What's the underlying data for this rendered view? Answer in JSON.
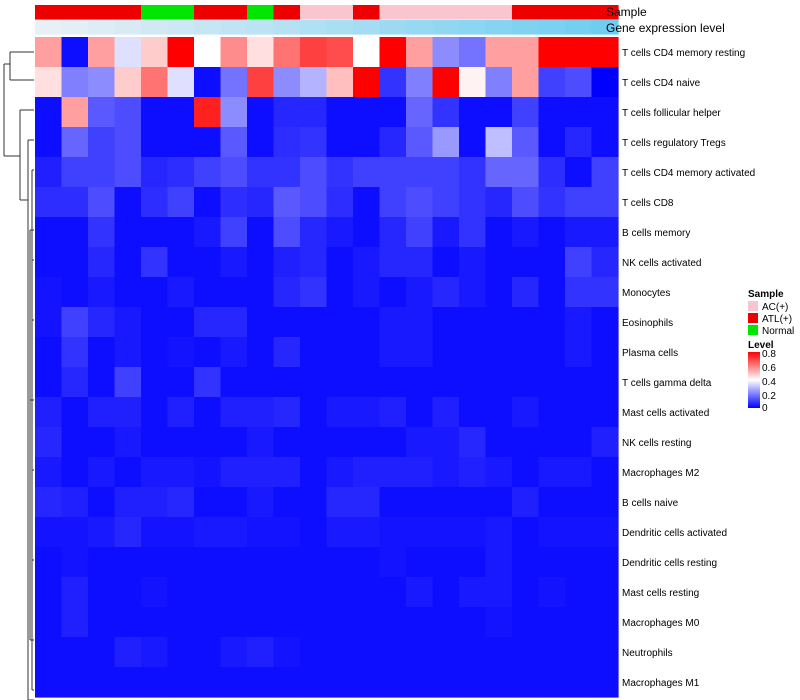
{
  "chart_data": {
    "type": "heatmap",
    "annotation_labels": [
      "Sample",
      "Gene expression level"
    ],
    "sample_group_colors": {
      "AC(+)": "#f9c6cf",
      "ATL(+)": "#ef0000",
      "Normal": "#00e600"
    },
    "sample_groups": [
      "ATL(+)",
      "ATL(+)",
      "ATL(+)",
      "ATL(+)",
      "Normal",
      "Normal",
      "ATL(+)",
      "ATL(+)",
      "Normal",
      "ATL(+)",
      "AC(+)",
      "AC(+)",
      "ATL(+)",
      "AC(+)",
      "AC(+)",
      "AC(+)",
      "AC(+)",
      "AC(+)",
      "ATL(+)",
      "ATL(+)",
      "ATL(+)",
      "ATL(+)"
    ],
    "expression_annotation": [
      0.02,
      0.05,
      0.09,
      0.13,
      0.17,
      0.21,
      0.25,
      0.29,
      0.33,
      0.37,
      0.41,
      0.45,
      0.5,
      0.54,
      0.58,
      0.62,
      0.66,
      0.7,
      0.74,
      0.78,
      0.82,
      0.86
    ],
    "rows": [
      "T cells CD4 memory resting",
      "T cells CD4 naive",
      "T cells follicular helper",
      "T cells regulatory  Tregs",
      "T cells CD4 memory activated",
      "T cells CD8",
      "B cells memory",
      "NK cells activated",
      "Monocytes",
      "Eosinophils",
      "Plasma cells",
      "T cells gamma delta",
      "Mast cells activated",
      "NK cells resting",
      "Macrophages M2",
      "B cells naive",
      "Dendritic cells activated",
      "Dendritic cells resting",
      "Mast cells resting",
      "Macrophages M0",
      "Neutrophils",
      "Macrophages M1"
    ],
    "values": [
      [
        0.55,
        0.02,
        0.55,
        0.35,
        0.48,
        0.8,
        0.4,
        0.58,
        0.45,
        0.62,
        0.7,
        0.68,
        0.4,
        0.8,
        0.55,
        0.22,
        0.18,
        0.55,
        0.55,
        0.8,
        0.8,
        0.8
      ],
      [
        0.45,
        0.2,
        0.22,
        0.48,
        0.62,
        0.35,
        0.02,
        0.18,
        0.7,
        0.22,
        0.28,
        0.5,
        0.8,
        0.08,
        0.2,
        0.8,
        0.42,
        0.2,
        0.55,
        0.1,
        0.12,
        0.0
      ],
      [
        0.02,
        0.55,
        0.14,
        0.12,
        0.02,
        0.02,
        0.75,
        0.22,
        0.02,
        0.06,
        0.06,
        0.02,
        0.02,
        0.02,
        0.16,
        0.08,
        0.02,
        0.02,
        0.1,
        0.02,
        0.02,
        0.02
      ],
      [
        0.02,
        0.16,
        0.1,
        0.12,
        0.02,
        0.02,
        0.02,
        0.14,
        0.02,
        0.07,
        0.08,
        0.02,
        0.02,
        0.06,
        0.14,
        0.24,
        0.02,
        0.3,
        0.14,
        0.02,
        0.06,
        0.02
      ],
      [
        0.05,
        0.1,
        0.1,
        0.12,
        0.06,
        0.07,
        0.1,
        0.12,
        0.08,
        0.08,
        0.12,
        0.08,
        0.1,
        0.1,
        0.1,
        0.1,
        0.08,
        0.16,
        0.16,
        0.07,
        0.02,
        0.1
      ],
      [
        0.07,
        0.07,
        0.12,
        0.02,
        0.07,
        0.1,
        0.02,
        0.07,
        0.06,
        0.14,
        0.12,
        0.07,
        0.02,
        0.1,
        0.12,
        0.1,
        0.08,
        0.06,
        0.12,
        0.08,
        0.1,
        0.1
      ],
      [
        0.02,
        0.02,
        0.08,
        0.02,
        0.02,
        0.02,
        0.04,
        0.1,
        0.02,
        0.12,
        0.06,
        0.04,
        0.02,
        0.06,
        0.1,
        0.04,
        0.08,
        0.02,
        0.04,
        0.02,
        0.04,
        0.04
      ],
      [
        0.02,
        0.02,
        0.06,
        0.02,
        0.08,
        0.02,
        0.02,
        0.04,
        0.02,
        0.05,
        0.06,
        0.02,
        0.04,
        0.06,
        0.06,
        0.02,
        0.04,
        0.02,
        0.02,
        0.02,
        0.1,
        0.06
      ],
      [
        0.03,
        0.02,
        0.04,
        0.02,
        0.02,
        0.04,
        0.02,
        0.02,
        0.02,
        0.06,
        0.08,
        0.02,
        0.04,
        0.02,
        0.04,
        0.06,
        0.04,
        0.02,
        0.06,
        0.02,
        0.08,
        0.08
      ],
      [
        0.03,
        0.1,
        0.06,
        0.04,
        0.02,
        0.02,
        0.06,
        0.06,
        0.02,
        0.02,
        0.02,
        0.02,
        0.02,
        0.04,
        0.04,
        0.02,
        0.02,
        0.02,
        0.02,
        0.02,
        0.04,
        0.02
      ],
      [
        0.02,
        0.08,
        0.02,
        0.04,
        0.02,
        0.03,
        0.02,
        0.04,
        0.02,
        0.06,
        0.02,
        0.02,
        0.02,
        0.04,
        0.04,
        0.02,
        0.02,
        0.02,
        0.02,
        0.02,
        0.04,
        0.02
      ],
      [
        0.02,
        0.06,
        0.02,
        0.1,
        0.02,
        0.02,
        0.08,
        0.02,
        0.02,
        0.02,
        0.02,
        0.02,
        0.02,
        0.02,
        0.02,
        0.02,
        0.02,
        0.02,
        0.02,
        0.02,
        0.02,
        0.02
      ],
      [
        0.05,
        0.02,
        0.05,
        0.05,
        0.02,
        0.05,
        0.02,
        0.05,
        0.05,
        0.06,
        0.02,
        0.04,
        0.04,
        0.05,
        0.02,
        0.05,
        0.02,
        0.02,
        0.04,
        0.02,
        0.02,
        0.02
      ],
      [
        0.06,
        0.02,
        0.02,
        0.04,
        0.02,
        0.02,
        0.02,
        0.02,
        0.04,
        0.02,
        0.02,
        0.02,
        0.02,
        0.02,
        0.04,
        0.04,
        0.06,
        0.02,
        0.02,
        0.02,
        0.02,
        0.05
      ],
      [
        0.04,
        0.02,
        0.04,
        0.02,
        0.04,
        0.04,
        0.03,
        0.05,
        0.05,
        0.05,
        0.02,
        0.04,
        0.05,
        0.05,
        0.05,
        0.04,
        0.05,
        0.04,
        0.02,
        0.04,
        0.04,
        0.02
      ],
      [
        0.06,
        0.05,
        0.02,
        0.05,
        0.05,
        0.06,
        0.02,
        0.02,
        0.04,
        0.02,
        0.02,
        0.06,
        0.06,
        0.02,
        0.02,
        0.02,
        0.02,
        0.02,
        0.05,
        0.02,
        0.02,
        0.02
      ],
      [
        0.03,
        0.03,
        0.04,
        0.06,
        0.03,
        0.03,
        0.04,
        0.04,
        0.03,
        0.03,
        0.02,
        0.04,
        0.04,
        0.03,
        0.03,
        0.03,
        0.03,
        0.04,
        0.02,
        0.03,
        0.03,
        0.03
      ],
      [
        0.02,
        0.03,
        0.02,
        0.02,
        0.02,
        0.02,
        0.02,
        0.02,
        0.02,
        0.02,
        0.02,
        0.02,
        0.02,
        0.03,
        0.02,
        0.02,
        0.02,
        0.04,
        0.02,
        0.02,
        0.02,
        0.02
      ],
      [
        0.02,
        0.05,
        0.02,
        0.02,
        0.03,
        0.02,
        0.02,
        0.02,
        0.02,
        0.02,
        0.02,
        0.02,
        0.02,
        0.02,
        0.04,
        0.02,
        0.04,
        0.04,
        0.02,
        0.03,
        0.02,
        0.02
      ],
      [
        0.02,
        0.05,
        0.02,
        0.02,
        0.02,
        0.02,
        0.02,
        0.02,
        0.02,
        0.02,
        0.02,
        0.02,
        0.02,
        0.02,
        0.02,
        0.02,
        0.02,
        0.03,
        0.02,
        0.02,
        0.02,
        0.02
      ],
      [
        0.02,
        0.02,
        0.02,
        0.05,
        0.04,
        0.02,
        0.02,
        0.04,
        0.05,
        0.03,
        0.02,
        0.02,
        0.02,
        0.02,
        0.02,
        0.02,
        0.02,
        0.02,
        0.02,
        0.02,
        0.02,
        0.02
      ],
      [
        0.02,
        0.02,
        0.02,
        0.02,
        0.02,
        0.02,
        0.02,
        0.02,
        0.02,
        0.02,
        0.02,
        0.02,
        0.02,
        0.02,
        0.02,
        0.02,
        0.02,
        0.02,
        0.02,
        0.02,
        0.02,
        0.02
      ]
    ],
    "legend": {
      "sample_title": "Sample",
      "sample_entries": [
        "AC(+)",
        "ATL(+)",
        "Normal"
      ],
      "level_title": "Level",
      "level_ticks": [
        "0.8",
        "0.6",
        "0.4",
        "0.2",
        "0"
      ],
      "level_range": [
        0,
        0.8
      ],
      "colors": {
        "low": "#0000ff",
        "mid": "#ffffff",
        "high": "#ff0000"
      }
    }
  }
}
